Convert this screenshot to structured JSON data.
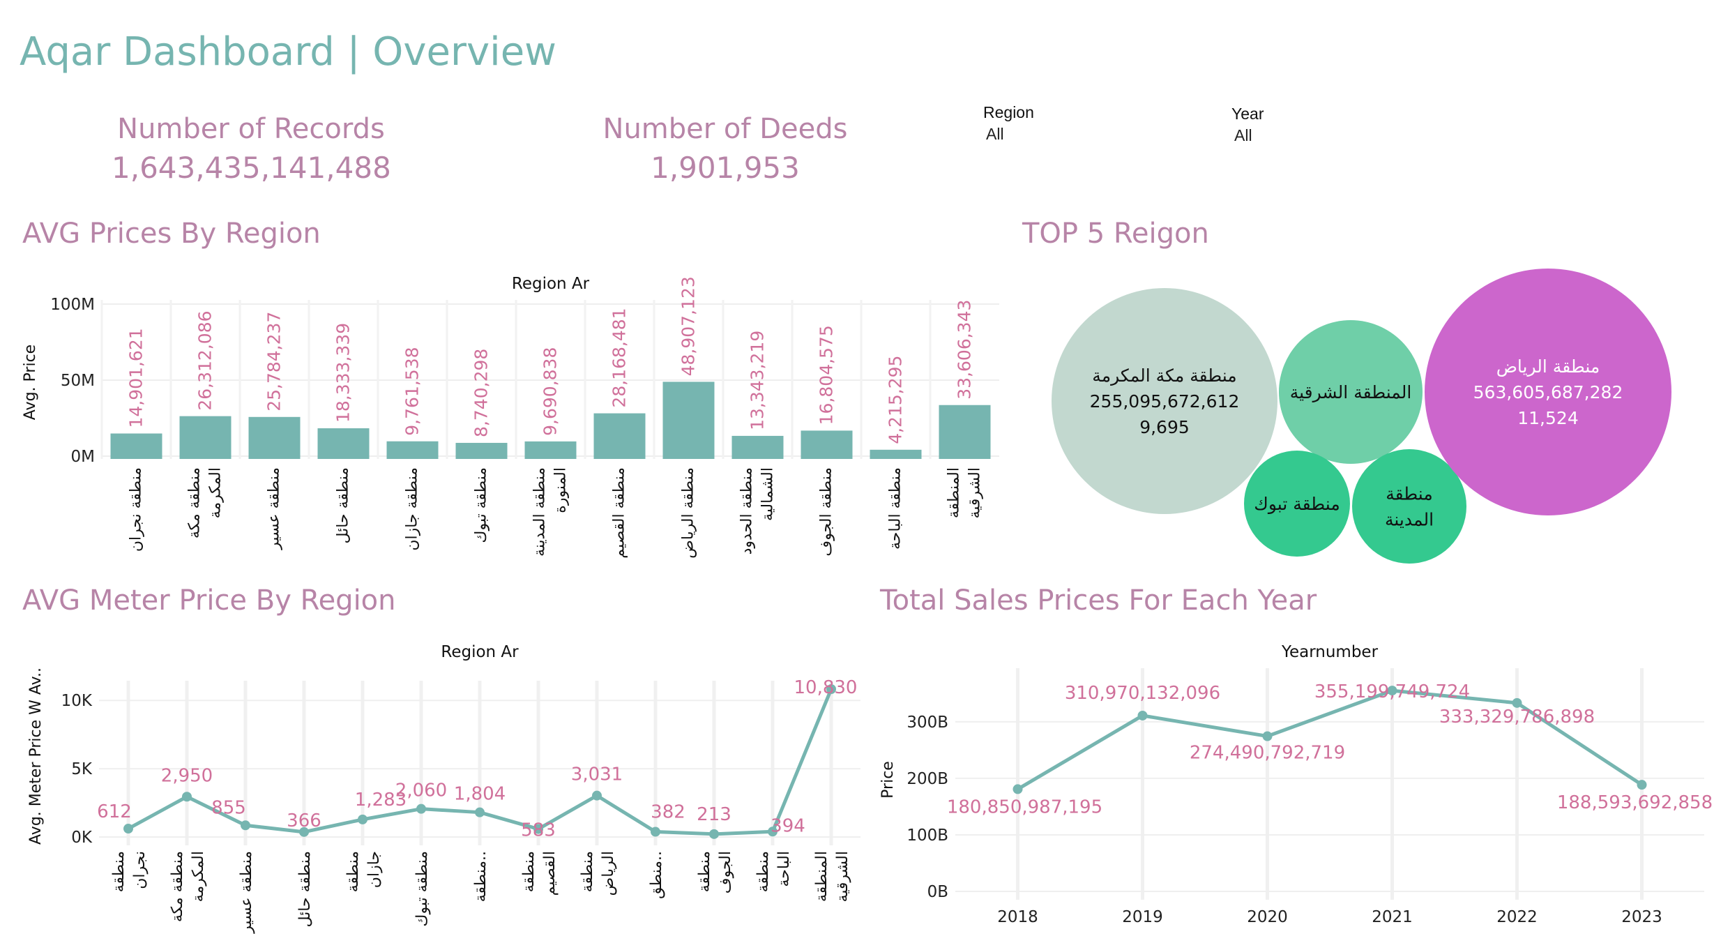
{
  "page_title": "Aqar Dashboard | Overview",
  "kpis": {
    "records_label": "Number of Records",
    "records_value": "1,643,435,141,488",
    "deeds_label": "Number of Deeds",
    "deeds_value": "1,901,953"
  },
  "filters": {
    "region_label": "Region",
    "region_value": "All",
    "year_label": "Year",
    "year_value": "All"
  },
  "sections": {
    "avg_prices": "AVG Prices By Region",
    "top5": "TOP 5 Reigon",
    "meter_price": "AVG Meter Price By Region",
    "sales_year": "Total Sales Prices For Each Year"
  },
  "colors": {
    "teal": "#76b5b0",
    "pink_text": "#b784a7",
    "label_pink": "#d0709a",
    "bubble_grey": "#c2d8cf",
    "bubble_mint": "#6fcfa8",
    "bubble_green": "#34c98f",
    "bubble_purple": "#cc66cc"
  },
  "chart_data": [
    {
      "type": "bar",
      "header": "Region Ar",
      "ylabel": "Avg. Price",
      "ylim": [
        0,
        100000000
      ],
      "yticks": [
        {
          "v": 0,
          "label": "0M"
        },
        {
          "v": 50000000,
          "label": "50M"
        },
        {
          "v": 100000000,
          "label": "100M"
        }
      ],
      "categories": [
        [
          "منطقة نجران"
        ],
        [
          "منطقة مكة",
          "المكرمة"
        ],
        [
          "منطقة عسير"
        ],
        [
          "منطقة حائل"
        ],
        [
          "منطقة جازان"
        ],
        [
          "منطقة تبوك"
        ],
        [
          "منطقة المدينة",
          "المنورة"
        ],
        [
          "منطقة القصيم"
        ],
        [
          "منطقة الرياض"
        ],
        [
          "منطقة الحدود",
          "الشمالية"
        ],
        [
          "منطقة الجوف"
        ],
        [
          "منطقة الباحة"
        ],
        [
          "المنطقة",
          "الشرقية"
        ]
      ],
      "values": [
        14901621,
        26312086,
        25784237,
        18333339,
        9761538,
        8740298,
        9690838,
        28168481,
        48907123,
        13343219,
        16804575,
        4215295,
        33606343
      ],
      "labels": [
        "14,901,621",
        "26,312,086",
        "25,784,237",
        "18,333,339",
        "9,761,538",
        "8,740,298",
        "9,690,838",
        "28,168,481",
        "48,907,123",
        "13,343,219",
        "16,804,575",
        "4,215,295",
        "33,606,343"
      ],
      "grid": true
    },
    {
      "type": "bubble",
      "bubbles": [
        {
          "region": "منطقة مكة المكرمة",
          "value": "255,095,672,612",
          "count": "9,695",
          "color": "#c2d8cf",
          "text_color": "#111111"
        },
        {
          "region": "المنطقة الشرقية",
          "color": "#6fcfa8",
          "text_color": "#111111"
        },
        {
          "region": "منطقة تبوك",
          "color": "#34c98f",
          "text_color": "#111111"
        },
        {
          "region": "منطقة المدينة",
          "color": "#34c98f",
          "text_color": "#111111"
        },
        {
          "region": "منطقة الرياض",
          "value": "563,605,687,282",
          "count": "11,524",
          "color": "#cc66cc",
          "text_color": "#ffffff"
        }
      ]
    },
    {
      "type": "line",
      "header": "Region Ar",
      "ylabel": "Avg. Meter Price W Av..",
      "ylim": [
        0,
        10830
      ],
      "yticks": [
        {
          "v": 0,
          "label": "0K"
        },
        {
          "v": 5000,
          "label": "5K"
        },
        {
          "v": 10000,
          "label": "10K"
        }
      ],
      "categories": [
        [
          "منطقة",
          "نجران"
        ],
        [
          "منطقة مكة",
          "المكرمة"
        ],
        [
          "منطقة عسير"
        ],
        [
          "منطقة حائل"
        ],
        [
          "منطقة",
          "جازان"
        ],
        [
          "منطقة تبوك"
        ],
        [
          "منطقة.."
        ],
        [
          "منطقة",
          "القصيم"
        ],
        [
          "منطقة",
          "الرياض"
        ],
        [
          "منطق.."
        ],
        [
          "منطقة",
          "الجوف"
        ],
        [
          "منطقة",
          "الباحة"
        ],
        [
          "المنطقة",
          "الشرقية"
        ]
      ],
      "values": [
        612,
        2950,
        855,
        366,
        1283,
        2060,
        1804,
        583,
        3031,
        382,
        213,
        394,
        10830
      ],
      "labels": [
        "612",
        "2,950",
        "855",
        "366",
        "1,283",
        "2,060",
        "1,804",
        "583",
        "3,031",
        "382",
        "213",
        "394",
        "10,830"
      ],
      "grid": true
    },
    {
      "type": "line",
      "header": "Yearnumber",
      "ylabel": "Price",
      "ylim": [
        0,
        380000000000
      ],
      "yticks": [
        {
          "v": 0,
          "label": "0B"
        },
        {
          "v": 100000000000,
          "label": "100B"
        },
        {
          "v": 200000000000,
          "label": "200B"
        },
        {
          "v": 300000000000,
          "label": "300B"
        }
      ],
      "x": [
        "2018",
        "2019",
        "2020",
        "2021",
        "2022",
        "2023"
      ],
      "values": [
        180850987195,
        310970132096,
        274490792719,
        355199749724,
        333329786898,
        188593692858
      ],
      "labels": [
        "180,850,987,195",
        "310,970,132,096",
        "274,490,792,719",
        "355,199,749,724",
        "333,329,786,898",
        "188,593,692,858"
      ],
      "grid": true
    }
  ]
}
